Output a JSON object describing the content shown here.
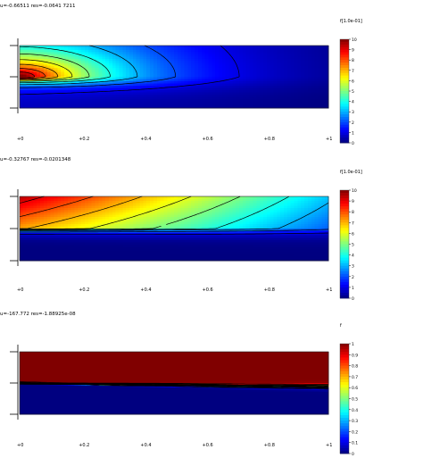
{
  "chart_data": [
    {
      "type": "heatmap",
      "title": "u=-0.66511 res=-0.0641 7211",
      "colorbar_label": "f[1.0e-01]",
      "colorbar_ticks": [
        "0",
        "1",
        "2",
        "3",
        "4",
        "5",
        "6",
        "7",
        "8",
        "9",
        "10"
      ],
      "xticks": [
        "+0",
        "+0.2",
        "+0.4",
        "+0.6",
        "+0.8",
        "+1"
      ],
      "xlim": [
        0,
        1
      ],
      "ylim": [
        -1,
        1
      ],
      "field": "corner",
      "source_y": 0,
      "contour_levels": [
        0.1,
        0.2,
        0.3,
        0.4,
        0.5,
        0.6,
        0.7,
        0.8,
        0.9
      ]
    },
    {
      "type": "heatmap",
      "title": "u=-0.32767 res=-0.0201348",
      "colorbar_label": "f[1.0e-01]",
      "colorbar_ticks": [
        "0",
        "1",
        "2",
        "3",
        "4",
        "5",
        "6",
        "7",
        "8",
        "9",
        "10"
      ],
      "xticks": [
        "+0",
        "+0.2",
        "+0.4",
        "+0.6",
        "+0.8",
        "+1"
      ],
      "xlim": [
        0,
        1
      ],
      "ylim": [
        -1,
        1
      ],
      "field": "plume",
      "source_y": 0,
      "contour_levels": [
        0.1,
        0.2,
        0.3,
        0.4,
        0.5,
        0.6,
        0.7,
        0.8,
        0.9
      ]
    },
    {
      "type": "heatmap",
      "title": "u=-167.772 res=-1.88925e-08",
      "colorbar_label": "f",
      "colorbar_ticks": [
        "0",
        "0.1",
        "0.2",
        "0.3",
        "0.4",
        "0.5",
        "0.6",
        "0.7",
        "0.8",
        "0.9",
        "1"
      ],
      "xticks": [
        "+0",
        "+0.2",
        "+0.4",
        "+0.6",
        "+0.8",
        "+1"
      ],
      "xlim": [
        0,
        1
      ],
      "ylim": [
        -1,
        1
      ],
      "field": "step",
      "source_y": 0,
      "contour_levels": [
        0.1,
        0.2,
        0.3,
        0.4,
        0.5,
        0.6,
        0.7,
        0.8,
        0.9
      ]
    }
  ]
}
